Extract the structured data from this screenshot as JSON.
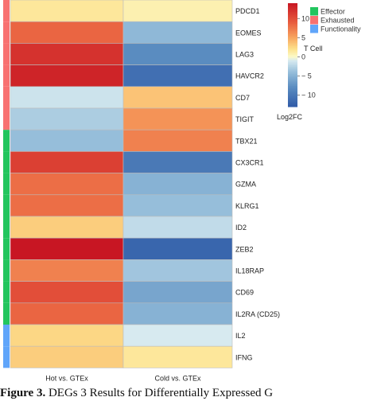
{
  "chart_data": {
    "type": "heatmap",
    "columns": [
      "Hot vs. GTEx",
      "Cold vs. GTEx"
    ],
    "rows": [
      "PDCD1",
      "EOMES",
      "LAG3",
      "HAVCR2",
      "CD7",
      "TIGIT",
      "TBX21",
      "CX3CR1",
      "GZMA",
      "KLRG1",
      "ID2",
      "ZEB2",
      "IL18RAP",
      "CD69",
      "IL2RA (CD25)",
      "IL2",
      "IFNG"
    ],
    "values": [
      [
        1.5,
        0.8
      ],
      [
        8.5,
        -4.5
      ],
      [
        12,
        -8
      ],
      [
        13,
        -11
      ],
      [
        -1.5,
        3.5
      ],
      [
        -3,
        6
      ],
      [
        -4,
        7
      ],
      [
        11,
        -10
      ],
      [
        8,
        -5
      ],
      [
        8,
        -4
      ],
      [
        3,
        -2
      ],
      [
        14,
        -12
      ],
      [
        7,
        -3.5
      ],
      [
        10,
        -6
      ],
      [
        8.5,
        -5
      ],
      [
        2.5,
        -1
      ],
      [
        3,
        1.5
      ]
    ],
    "row_groups": [
      "Exhausted",
      "Exhausted",
      "Exhausted",
      "Exhausted",
      "Exhausted",
      "Exhausted",
      "Effector",
      "Effector",
      "Effector",
      "Effector",
      "Effector",
      "Effector",
      "Effector",
      "Effector",
      "Effector",
      "Functionality",
      "Functionality"
    ],
    "legend_title": "Log2FC",
    "colorbar_ticks": [
      10,
      5,
      0,
      -5,
      -10
    ],
    "colorbar_tick_labels": [
      "10",
      "5",
      "0",
      "− 5",
      "− 10"
    ],
    "value_range": [
      -13,
      14
    ],
    "group_legend_title": "T Cell",
    "groups": [
      {
        "name": "Effector",
        "color": "#22c55e"
      },
      {
        "name": "Exhausted",
        "color": "#f87171"
      },
      {
        "name": "Functionality",
        "color": "#60a5fa"
      }
    ]
  },
  "caption": {
    "bold": "Figure 3.",
    "text": " DEGs 3 Results for Differentially Expressed G"
  }
}
